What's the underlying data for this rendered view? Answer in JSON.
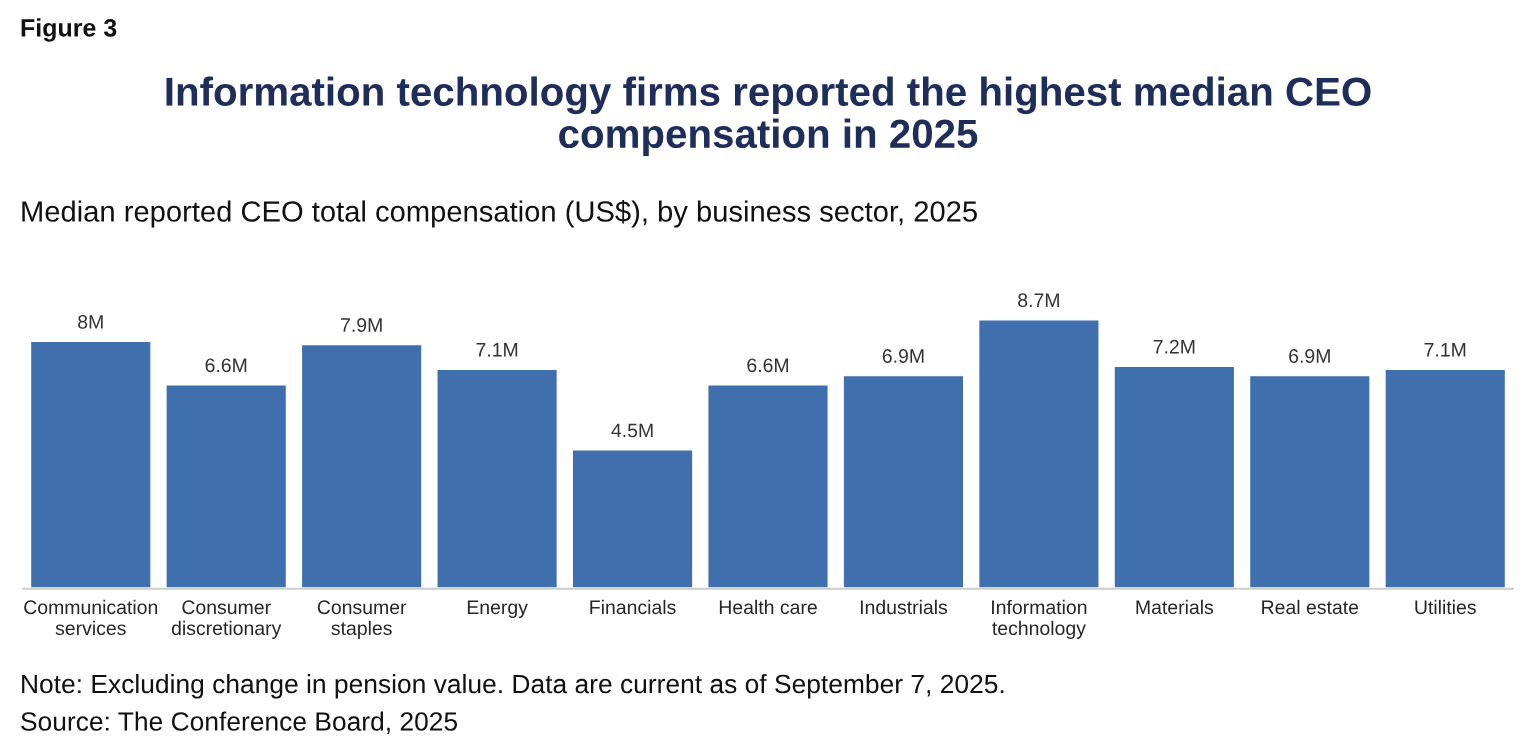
{
  "chart_data": {
    "type": "bar",
    "title": "Information technology firms reported the highest median CEO\ncompensation in 2025",
    "subtitle": "Median reported CEO total compensation (US$), by business sector, 2025",
    "categories": [
      "Communication\nservices",
      "Consumer\ndiscretionary",
      "Consumer\nstaples",
      "Energy",
      "Financials",
      "Health care",
      "Industrials",
      "Information\ntechnology",
      "Materials",
      "Real estate",
      "Utilities"
    ],
    "values": [
      8,
      6.6,
      7.9,
      7.1,
      4.5,
      6.6,
      6.9,
      8.7,
      7.2,
      6.9,
      7.1
    ],
    "value_labels": [
      "8M",
      "6.6M",
      "7.9M",
      "7.1M",
      "4.5M",
      "6.6M",
      "6.9M",
      "8.7M",
      "7.2M",
      "6.9M",
      "7.1M"
    ],
    "color": "#3f6fad",
    "tick_labels": "x",
    "grid": false,
    "annotations": [
      "Figure 3",
      "Note: Excluding change in pension value. Data are current as of September 7, 2025.",
      "Source: The Conference Board, 2025"
    ]
  }
}
